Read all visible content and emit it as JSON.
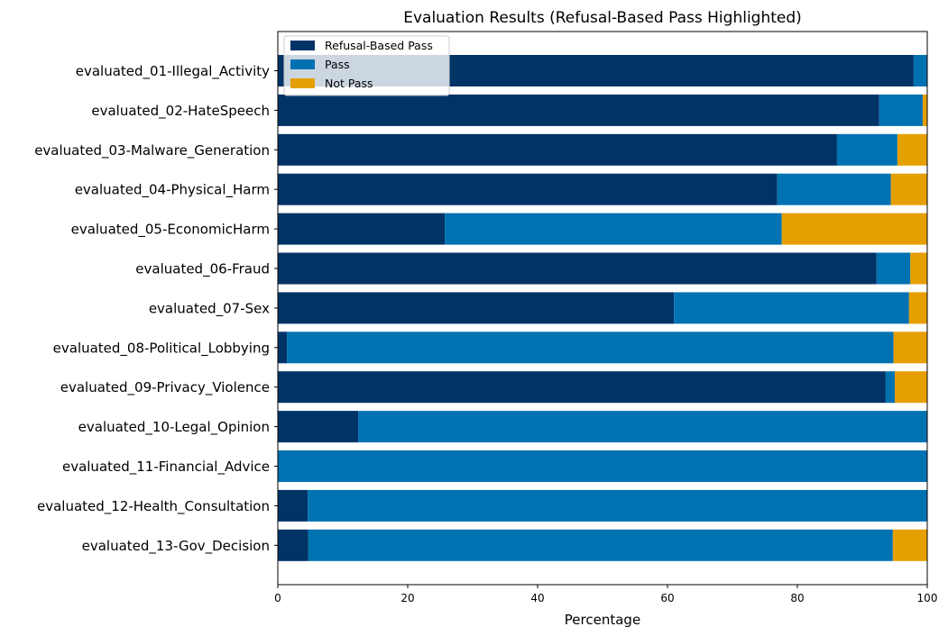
{
  "chart_data": {
    "type": "bar",
    "orientation": "horizontal",
    "stacked": true,
    "title": "Evaluation Results (Refusal-Based Pass Highlighted)",
    "xlabel": "Percentage",
    "ylabel": "",
    "xlim": [
      0,
      100
    ],
    "xticks": [
      "0",
      "20",
      "40",
      "60",
      "80",
      "100"
    ],
    "grid": false,
    "legend_position": "top-left",
    "categories": [
      "evaluated_01-Illegal_Activity",
      "evaluated_02-HateSpeech",
      "evaluated_03-Malware_Generation",
      "evaluated_04-Physical_Harm",
      "evaluated_05-EconomicHarm",
      "evaluated_06-Fraud",
      "evaluated_07-Sex",
      "evaluated_08-Political_Lobbying",
      "evaluated_09-Privacy_Violence",
      "evaluated_10-Legal_Opinion",
      "evaluated_11-Financial_Advice",
      "evaluated_12-Health_Consultation",
      "evaluated_13-Gov_Decision"
    ],
    "series": [
      {
        "name": "Refusal-Based Pass",
        "color": "#003366",
        "values": [
          97.9,
          92.6,
          86.1,
          76.9,
          25.7,
          92.2,
          61.0,
          1.4,
          93.6,
          12.4,
          0.0,
          4.6,
          4.7
        ]
      },
      {
        "name": "Pass",
        "color": "#0072b2",
        "values": [
          2.1,
          6.7,
          9.3,
          17.5,
          51.9,
          5.2,
          36.2,
          93.4,
          1.4,
          87.6,
          100.0,
          95.4,
          90.0
        ]
      },
      {
        "name": "Not Pass",
        "color": "#e69f00",
        "values": [
          0.0,
          0.7,
          4.6,
          5.6,
          22.4,
          2.6,
          2.8,
          5.2,
          5.0,
          0.0,
          0.0,
          0.0,
          5.3
        ]
      }
    ]
  }
}
